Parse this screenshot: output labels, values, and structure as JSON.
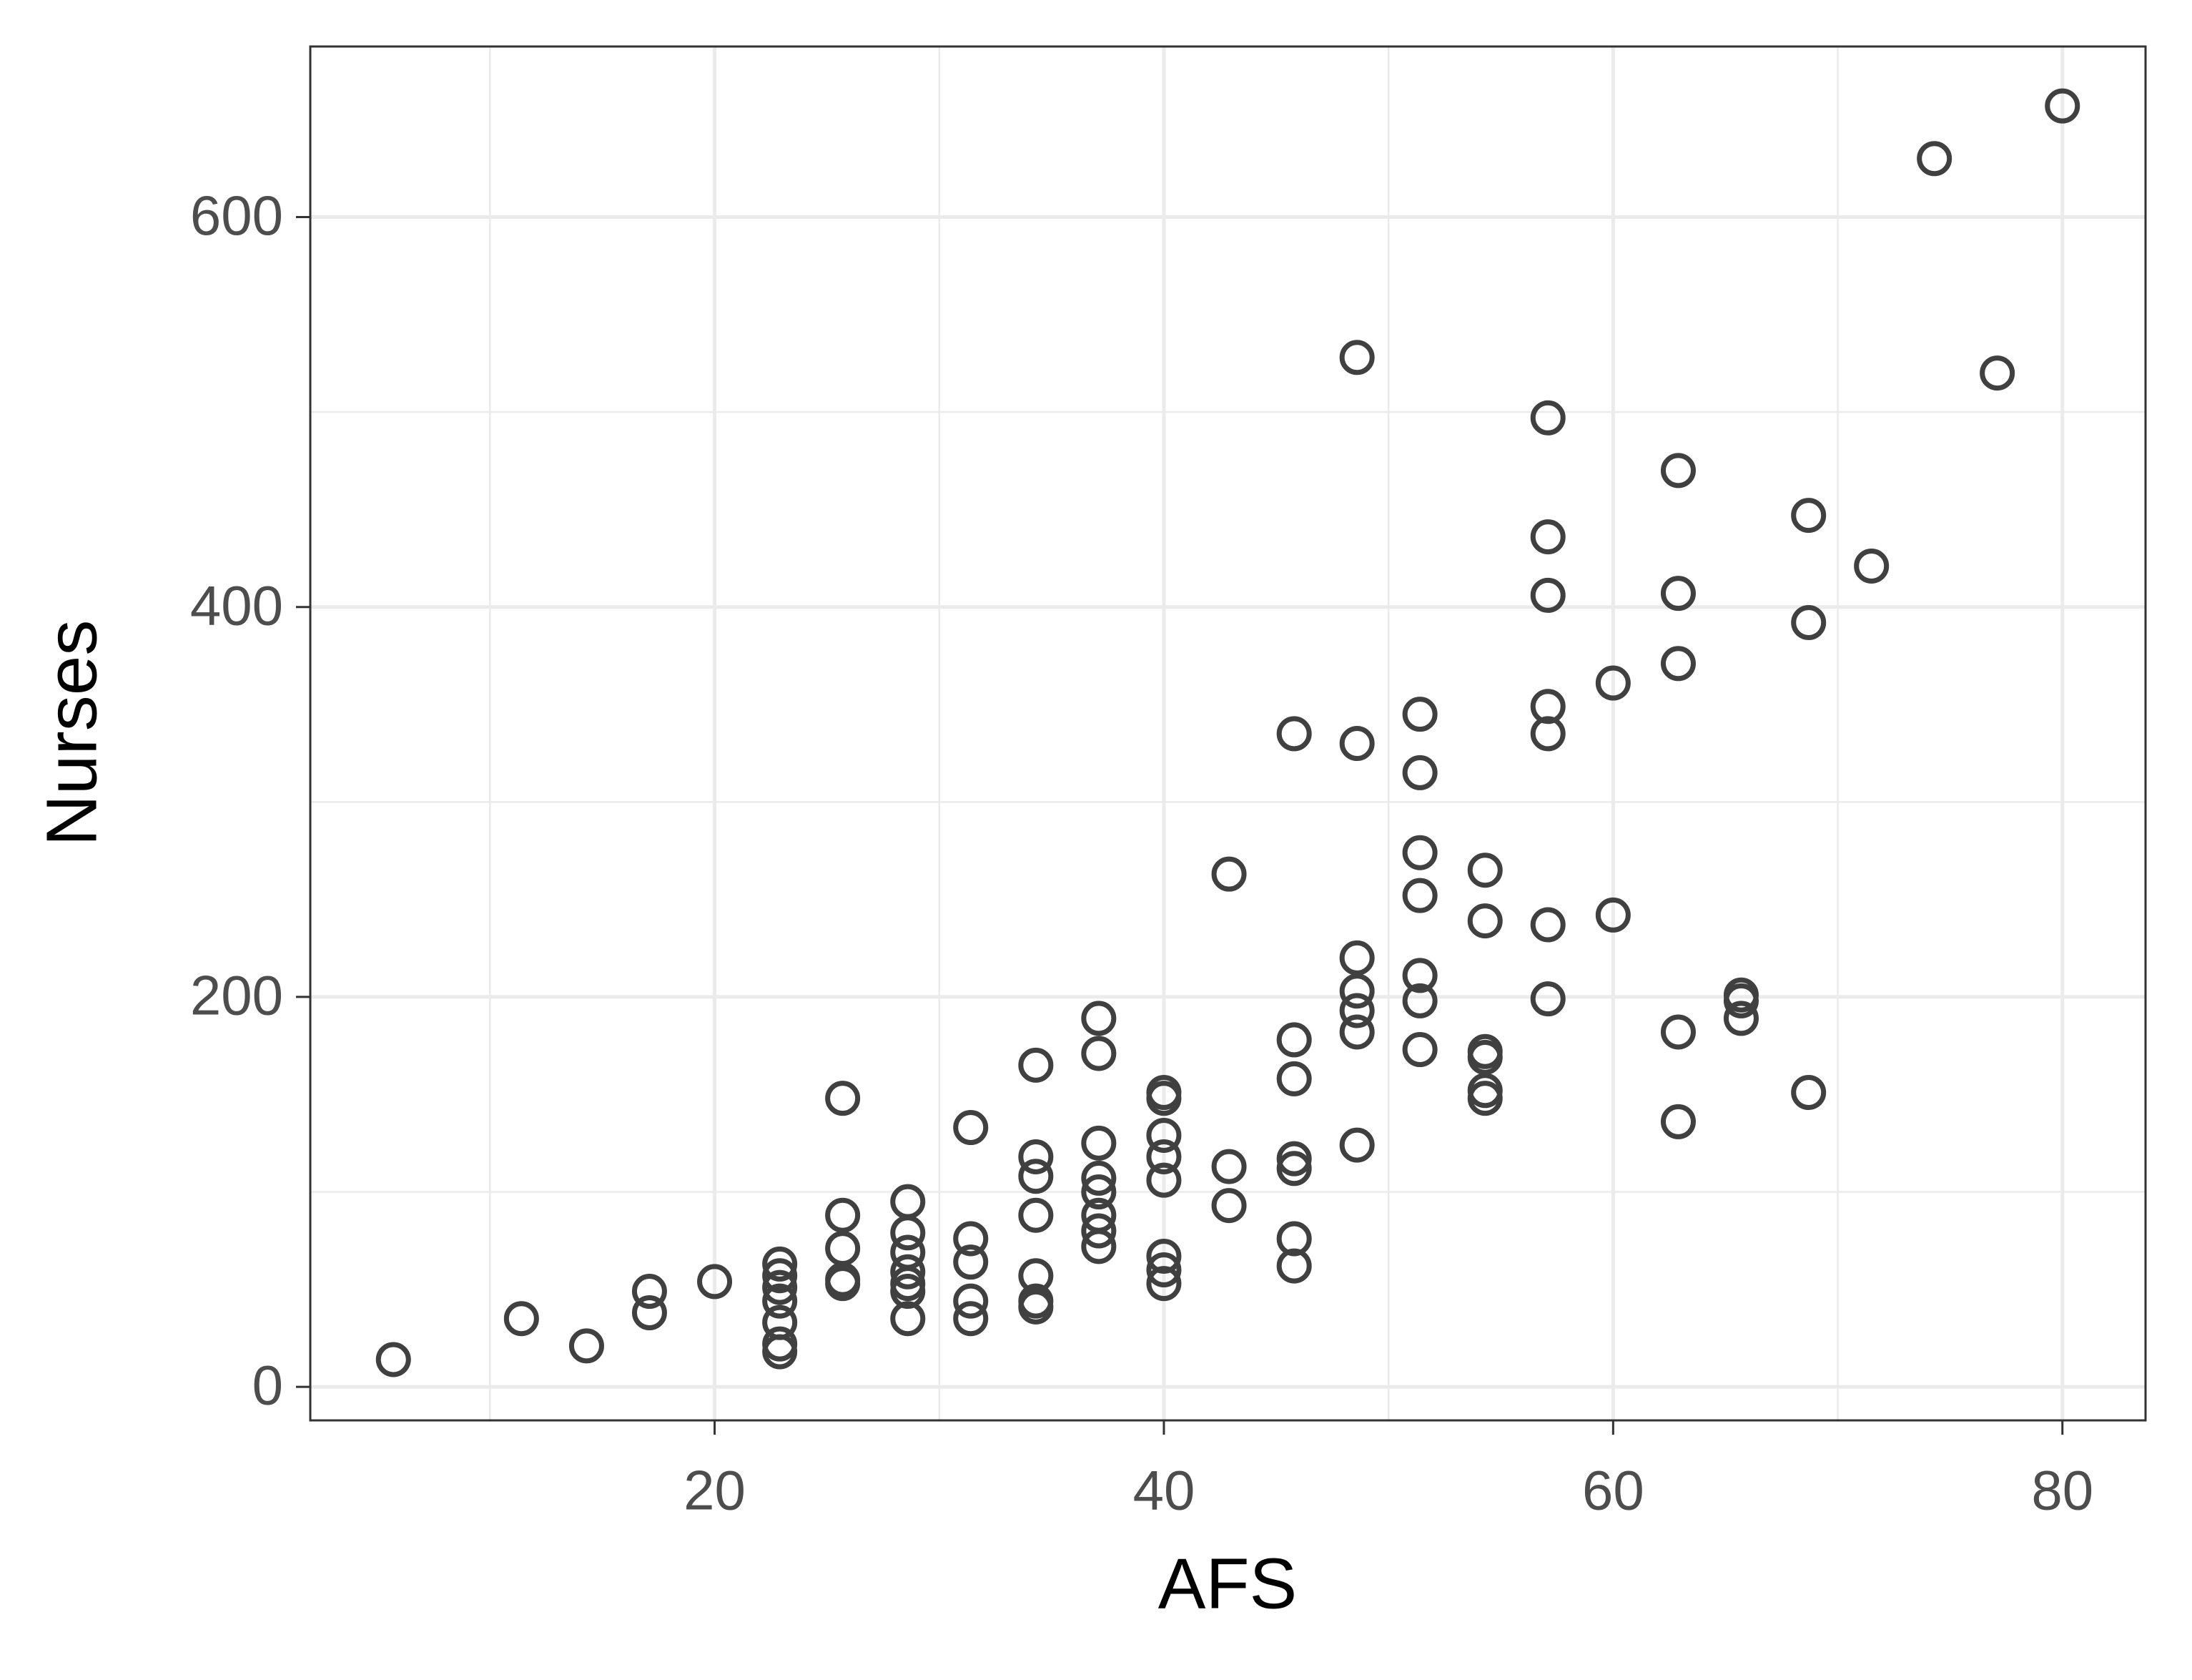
{
  "chart_data": {
    "type": "scatter",
    "x_label": "AFS",
    "y_label": "Nurses",
    "xlim": [
      2.0,
      83.7
    ],
    "ylim": [
      -17.2,
      687.5
    ],
    "xticks": [
      20,
      40,
      60,
      80
    ],
    "yticks": [
      0,
      200,
      400,
      600
    ],
    "grid": true,
    "minor_grid": true,
    "color": "#404040",
    "series": [
      {
        "x": [
          5.7,
          11.4,
          14.3,
          17.1,
          17.1,
          20,
          22.9,
          22.9,
          22.9,
          22.9,
          22.9,
          22.9,
          22.9,
          25.7,
          25.7,
          25.7,
          25.7,
          25.7,
          28.6,
          28.6,
          28.6,
          28.6,
          28.6,
          28.6,
          28.6,
          31.4,
          31.4,
          31.4,
          31.4,
          31.4,
          34.3,
          34.3,
          34.3,
          34.3,
          34.3,
          34.3,
          34.3,
          37.1,
          37.1,
          37.1,
          37.1,
          37.1,
          37.1,
          37.1,
          37.1,
          40,
          40,
          40,
          40,
          40,
          40,
          40,
          40,
          42.9,
          42.9,
          42.9,
          45.8,
          45.8,
          45.8,
          45.8,
          45.8,
          45.8,
          45.8,
          48.6,
          48.6,
          48.6,
          48.6,
          48.6,
          48.6,
          48.6,
          51.4,
          51.4,
          51.4,
          51.4,
          51.4,
          51.4,
          51.4,
          54.3,
          54.3,
          54.3,
          54.3,
          54.3,
          54.3,
          57.1,
          57.1,
          57.1,
          57.1,
          57.1,
          57.1,
          57.1,
          60,
          60,
          62.9,
          62.9,
          62.9,
          62.9,
          62.9,
          65.7,
          65.7,
          65.7,
          68.7,
          68.7,
          68.7,
          71.5,
          74.3,
          77.1,
          80
        ],
        "values": [
          14,
          35,
          21,
          49,
          38,
          54,
          63,
          57,
          51,
          44,
          33,
          22,
          18,
          148,
          88,
          71,
          55,
          53,
          95,
          79,
          69,
          59,
          53,
          49,
          35,
          133,
          76,
          64,
          44,
          35,
          165,
          118,
          108,
          88,
          57,
          44,
          41,
          189,
          171,
          125,
          107,
          100,
          88,
          80,
          72,
          151,
          148,
          129,
          118,
          106,
          67,
          60,
          53,
          263,
          113,
          93,
          335,
          178,
          158,
          117,
          112,
          76,
          62,
          528,
          330,
          220,
          203,
          193,
          182,
          124,
          345,
          315,
          274,
          252,
          211,
          198,
          173,
          265,
          239,
          172,
          169,
          152,
          148,
          497,
          436,
          406,
          349,
          335,
          237,
          199,
          361,
          242,
          470,
          407,
          371,
          182,
          136,
          201,
          198,
          189,
          447,
          392,
          151,
          421,
          630,
          520,
          657
        ]
      }
    ]
  }
}
